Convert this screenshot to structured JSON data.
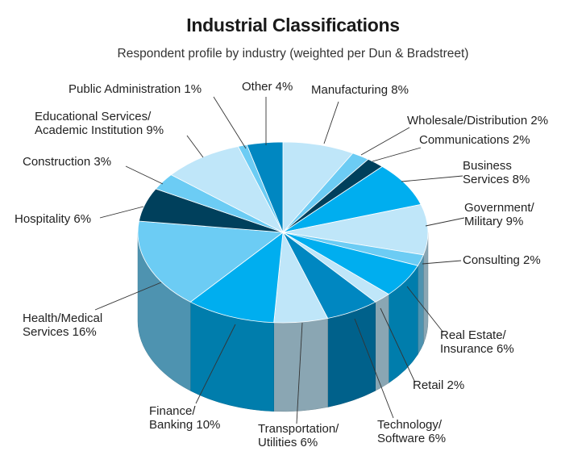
{
  "chart_data": {
    "type": "pie",
    "title": "Industrial Classifications",
    "subtitle": "Respondent profile by industry (weighted per Dun & Bradstreet)",
    "colors": {
      "pale": "#bfe6f9",
      "light": "#6cccf4",
      "bright": "#00aeef",
      "mid": "#0087c1",
      "dark": "#00405c"
    },
    "slices": [
      {
        "name": "Manufacturing",
        "value": 8,
        "color_key": "pale",
        "label_lines": [
          "Manufacturing 8%"
        ]
      },
      {
        "name": "Wholesale/Distribution",
        "value": 2,
        "color_key": "light",
        "label_lines": [
          "Wholesale/Distribution 2%"
        ]
      },
      {
        "name": "Communications",
        "value": 2,
        "color_key": "dark",
        "label_lines": [
          "Communications 2%"
        ]
      },
      {
        "name": "Business Services",
        "value": 8,
        "color_key": "bright",
        "label_lines": [
          "Business",
          "Services 8%"
        ]
      },
      {
        "name": "Government/Military",
        "value": 9,
        "color_key": "pale",
        "label_lines": [
          "Government/",
          "Military 9%"
        ]
      },
      {
        "name": "Consulting",
        "value": 2,
        "color_key": "light",
        "label_lines": [
          "Consulting 2%"
        ]
      },
      {
        "name": "Real Estate/Insurance",
        "value": 6,
        "color_key": "bright",
        "label_lines": [
          "Real Estate/",
          "Insurance 6%"
        ]
      },
      {
        "name": "Retail",
        "value": 2,
        "color_key": "pale",
        "label_lines": [
          "Retail 2%"
        ]
      },
      {
        "name": "Technology/Software",
        "value": 6,
        "color_key": "mid",
        "label_lines": [
          "Technology/",
          "Software 6%"
        ]
      },
      {
        "name": "Transportation/Utilities",
        "value": 6,
        "color_key": "pale",
        "label_lines": [
          "Transportation/",
          "Utilities 6%"
        ]
      },
      {
        "name": "Finance/Banking",
        "value": 10,
        "color_key": "bright",
        "label_lines": [
          "Finance/",
          "Banking 10%"
        ]
      },
      {
        "name": "Health/Medical Services",
        "value": 16,
        "color_key": "light",
        "label_lines": [
          "Health/Medical",
          "Services 16%"
        ]
      },
      {
        "name": "Hospitality",
        "value": 6,
        "color_key": "dark",
        "label_lines": [
          "Hospitality 6%"
        ]
      },
      {
        "name": "Construction",
        "value": 3,
        "color_key": "light",
        "label_lines": [
          "Construction 3%"
        ]
      },
      {
        "name": "Educational Services/Academic Institution",
        "value": 9,
        "color_key": "pale",
        "label_lines": [
          "Educational Services/",
          "Academic Institution 9%"
        ]
      },
      {
        "name": "Public Administration",
        "value": 1,
        "color_key": "light",
        "label_lines": [
          "Public Administration 1%"
        ]
      },
      {
        "name": "Other",
        "value": 4,
        "color_key": "mid",
        "label_lines": [
          "Other 4%"
        ]
      }
    ]
  }
}
